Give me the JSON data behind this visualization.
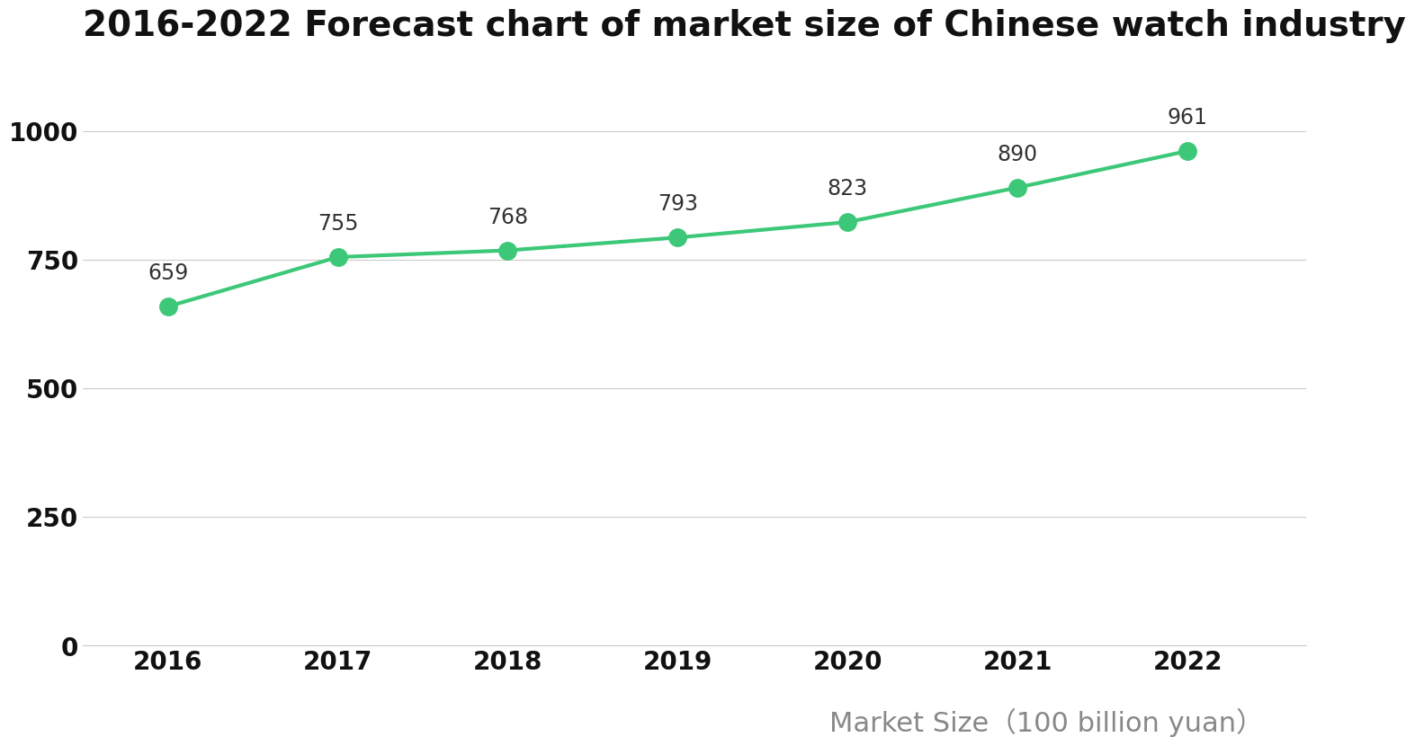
{
  "title": "2016-2022 Forecast chart of market size of Chinese watch industry",
  "years": [
    2016,
    2017,
    2018,
    2019,
    2020,
    2021,
    2022
  ],
  "values": [
    659,
    755,
    768,
    793,
    823,
    890,
    961
  ],
  "line_color": "#3CC878",
  "marker_color": "#3CC878",
  "marker_size": 14,
  "line_width": 3,
  "yticks": [
    0,
    250,
    500,
    750,
    1000
  ],
  "ylim": [
    0,
    1100
  ],
  "xlim": [
    2015.5,
    2022.7
  ],
  "legend_text": "Market Size（100 billion yuan）",
  "background_color": "#ffffff",
  "title_fontsize": 28,
  "tick_fontsize": 20,
  "annotation_fontsize": 17,
  "legend_fontsize": 22,
  "grid_color": "#cccccc",
  "title_color": "#111111",
  "tick_color": "#111111",
  "legend_color": "#888888",
  "annotation_color": "#333333"
}
